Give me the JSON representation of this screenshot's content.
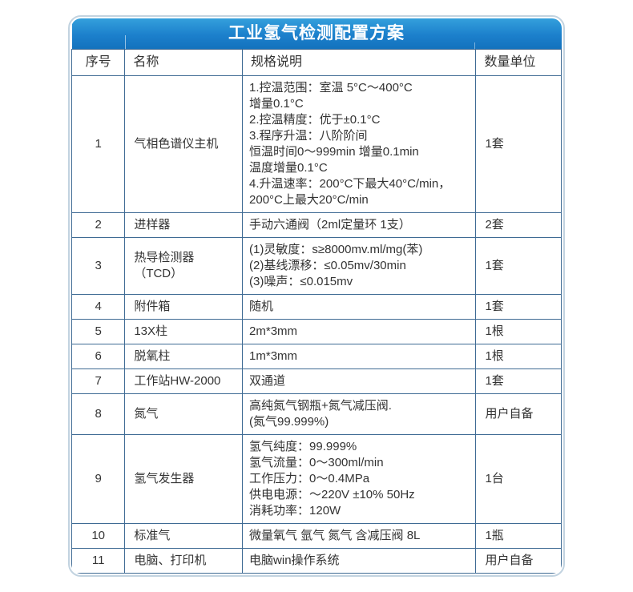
{
  "title": "工业氢气检测配置方案",
  "colors": {
    "title_bar_top": "#34a0dc",
    "title_bar_bottom": "#1372bd",
    "cell_border": "#3f6b94",
    "outer_border": "#c2d3e0",
    "text": "#333333",
    "title_text": "#ffffff"
  },
  "table": {
    "headers": [
      "序号",
      "名称",
      "规格说明",
      "数量单位"
    ],
    "rows": [
      {
        "no": "1",
        "name": "气相色谱仪主机",
        "spec": [
          "1.控温范围：室温 5°C～400°C",
          "增量0.1°C",
          "2.控温精度：优于±0.1°C",
          "3.程序升温：八阶阶间",
          "恒温时间0～999min 增量0.1min",
          "温度增量0.1°C",
          "4.升温速率：200°C下最大40°C/min，",
          "200°C上最大20°C/min"
        ],
        "qty": "1套"
      },
      {
        "no": "2",
        "name": "进样器",
        "spec": [
          "手动六通阀（2ml定量环 1支）"
        ],
        "qty": "2套"
      },
      {
        "no": "3",
        "name": "热导检测器（TCD）",
        "spec": [
          "(1)灵敏度：s≥8000mv.ml/mg(苯)",
          "(2)基线漂移：≤0.05mv/30min",
          "(3)噪声：≤0.015mv"
        ],
        "qty": "1套"
      },
      {
        "no": "4",
        "name": "附件箱",
        "spec": [
          "随机"
        ],
        "qty": "1套"
      },
      {
        "no": "5",
        "name": "13X柱",
        "spec": [
          "2m*3mm"
        ],
        "qty": "1根"
      },
      {
        "no": "6",
        "name": "脱氧柱",
        "spec": [
          "1m*3mm"
        ],
        "qty": "1根"
      },
      {
        "no": "7",
        "name": "工作站HW-2000",
        "spec": [
          "双通道"
        ],
        "qty": "1套"
      },
      {
        "no": "8",
        "name": "氮气",
        "spec": [
          "高纯氮气钢瓶+氮气减压阀.",
          "(氮气99.999%)"
        ],
        "qty": "用户自备"
      },
      {
        "no": "9",
        "name": "氢气发生器",
        "spec": [
          "氢气纯度：99.999%",
          "氢气流量：0～300ml/min",
          "工作压力：0～0.4MPa",
          "供电电源：～220V ±10% 50Hz",
          "消耗功率：120W"
        ],
        "qty": "1台"
      },
      {
        "no": "10",
        "name": "标准气",
        "spec": [
          "微量氧气 氩气 氮气 含减压阀 8L"
        ],
        "qty": "1瓶"
      },
      {
        "no": "11",
        "name": "电脑、打印机",
        "spec": [
          "电脑win操作系统"
        ],
        "qty": "用户自备"
      }
    ]
  }
}
